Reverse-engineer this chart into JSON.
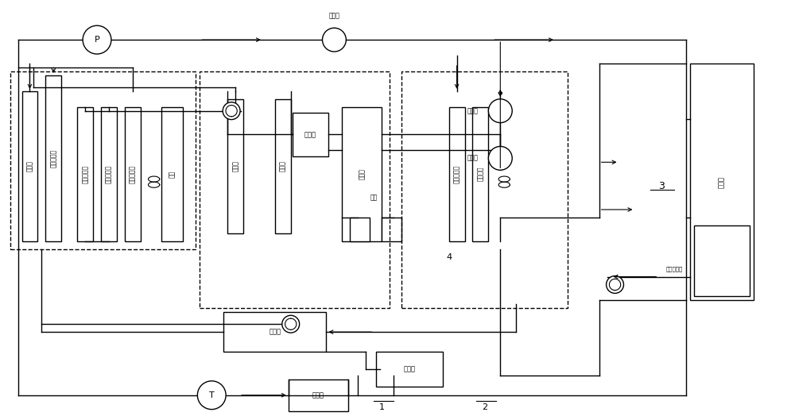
{
  "bg_color": "#ffffff",
  "fig_width": 10.0,
  "fig_height": 5.24,
  "components": {
    "leng_ning_qi": "冷凝器",
    "di_wen_huan_re_qi": "低温换热器",
    "gao_wen_huan_re_qi": "高温换热器",
    "zhong_leng_huan_re_qi": "中冷换热器",
    "dian_ji_you_leng_qi": "电机油冷器",
    "dian_ji": "电机",
    "zhong_leng_qi": "中冷器",
    "zeng_ya_qi": "增压器",
    "jie_wen_qi": "节温器",
    "fa_dong_ji": "发动机",
    "qian_nuan_feng_xin_ti": "前暖风芯体",
    "qian_mao_fa_qi": "前茅发器",
    "dian_chi_bao": "电池包",
    "wen_du_chuan_gan_qi": "温度传感器",
    "kong_zhi_qi": "控制器",
    "zhuan_huan_qi": "转换器",
    "ya_suo_ji": "压缩机",
    "peng_zhang_fa_top": "膨胀阀",
    "zhi_zhi_fa": "截止阀",
    "peng_zhang_fa_mid": "膨胀阀",
    "shui_beng": "水泵",
    "label_1": "1",
    "label_2": "2",
    "label_3": "3",
    "label_4": "4"
  }
}
